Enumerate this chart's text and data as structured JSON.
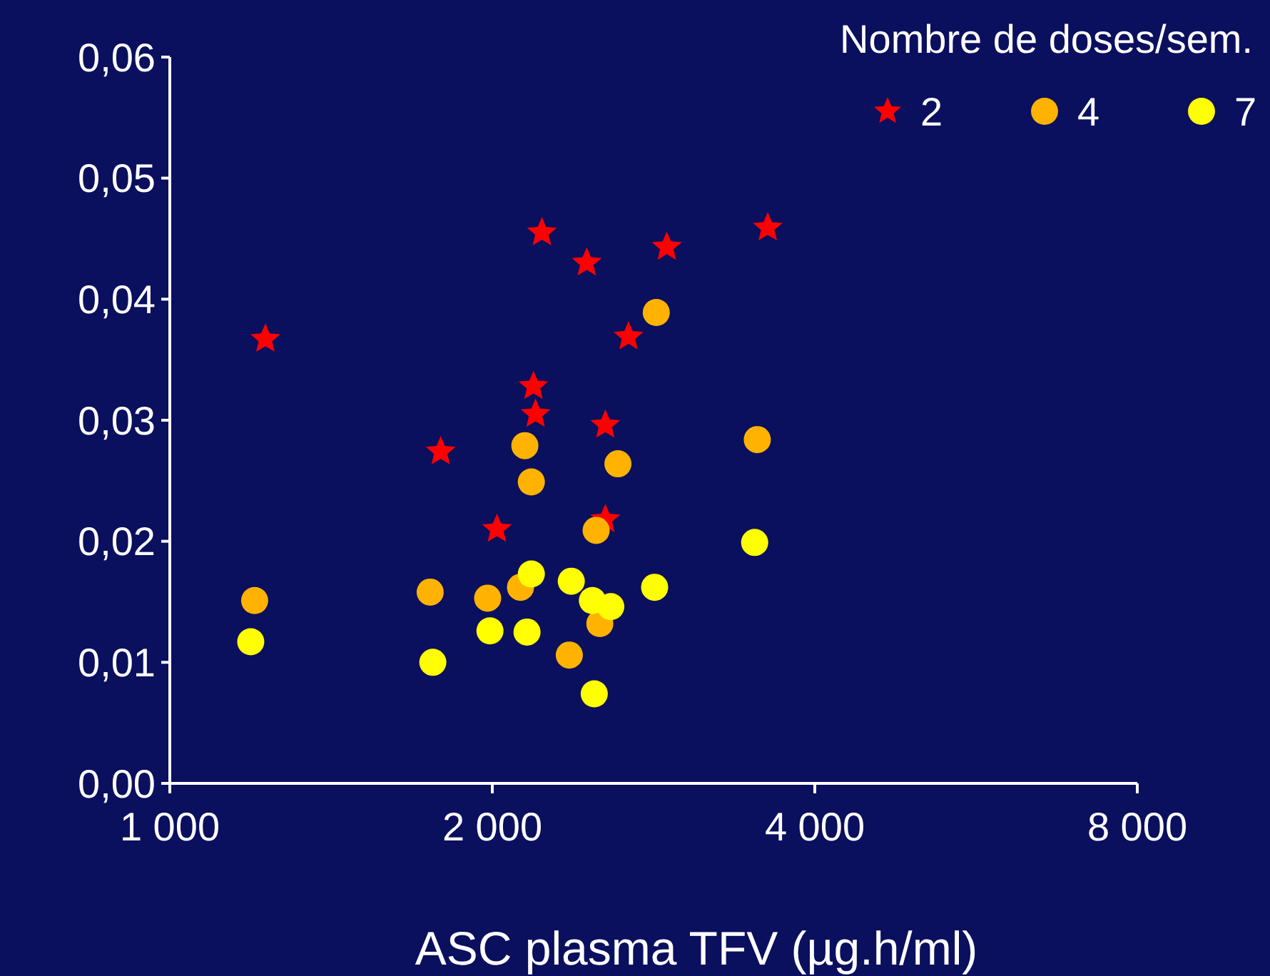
{
  "chart_data": {
    "type": "scatter",
    "xlabel": "ASC plasma TFV (µg.h/ml)",
    "legend_title": "Nombre de doses/sem.",
    "legend": "top right",
    "log": "x",
    "grid": false,
    "xlim": [
      1000,
      8000
    ],
    "xticks": [
      {
        "value": 1000,
        "label": "1 000"
      },
      {
        "value": 2000,
        "label": "2 000"
      },
      {
        "value": 4000,
        "label": "4 000"
      },
      {
        "value": 8000,
        "label": "8 000"
      }
    ],
    "ylim": [
      0,
      0.06
    ],
    "yticks": [
      {
        "value": 0,
        "label": "0,00"
      },
      {
        "value": 0.01,
        "label": "0,01"
      },
      {
        "value": 0.02,
        "label": "0,02"
      },
      {
        "value": 0.03,
        "label": "0,03"
      },
      {
        "value": 0.04,
        "label": "0,04"
      },
      {
        "value": 0.05,
        "label": "0,05"
      },
      {
        "value": 0.06,
        "label": "0,06"
      }
    ],
    "series": [
      {
        "name": "2",
        "color": "#ff0000",
        "marker": "star",
        "x": [
          1228,
          1790,
          2020,
          2185,
          2195,
          2225,
          2450,
          2550,
          2550,
          2680,
          2910,
          3615
        ],
        "values": [
          0.0367,
          0.0274,
          0.021,
          0.0328,
          0.0305,
          0.0455,
          0.043,
          0.0296,
          0.0218,
          0.0369,
          0.0443,
          0.0459
        ]
      },
      {
        "name": "4",
        "color": "#ffb300",
        "marker": "circle",
        "x": [
          1200,
          1750,
          1980,
          2145,
          2175,
          2125,
          2360,
          2500,
          2520,
          2620,
          2845,
          3535
        ],
        "values": [
          0.0151,
          0.0158,
          0.0153,
          0.0279,
          0.0249,
          0.0162,
          0.0106,
          0.0209,
          0.0132,
          0.0264,
          0.0389,
          0.0284
        ]
      },
      {
        "name": "7",
        "color": "#ffff00",
        "marker": "circle",
        "x": [
          1190,
          1760,
          1990,
          2155,
          2175,
          2370,
          2480,
          2580,
          2490,
          2835,
          3515
        ],
        "values": [
          0.0117,
          0.01,
          0.0126,
          0.0125,
          0.0173,
          0.0167,
          0.0151,
          0.0146,
          0.0074,
          0.0162,
          0.0199
        ]
      }
    ]
  }
}
